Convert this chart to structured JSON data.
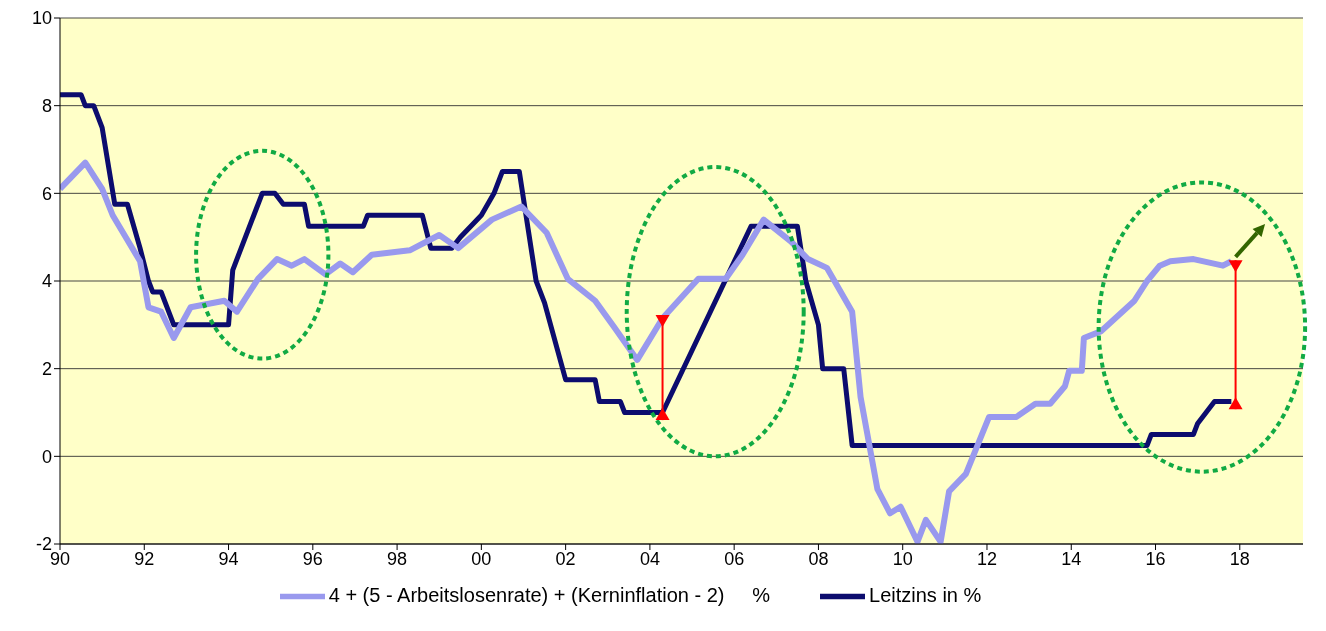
{
  "chart_data": {
    "type": "line",
    "xlim": [
      1990,
      2019.5
    ],
    "ylim": [
      -2,
      10
    ],
    "xticks": [
      {
        "value": 1990,
        "label": "90"
      },
      {
        "value": 1992,
        "label": "92"
      },
      {
        "value": 1994,
        "label": "94"
      },
      {
        "value": 1996,
        "label": "96"
      },
      {
        "value": 1998,
        "label": "98"
      },
      {
        "value": 2000,
        "label": "00"
      },
      {
        "value": 2002,
        "label": "02"
      },
      {
        "value": 2004,
        "label": "04"
      },
      {
        "value": 2006,
        "label": "06"
      },
      {
        "value": 2008,
        "label": "08"
      },
      {
        "value": 2010,
        "label": "10"
      },
      {
        "value": 2012,
        "label": "12"
      },
      {
        "value": 2014,
        "label": "14"
      },
      {
        "value": 2016,
        "label": "16"
      },
      {
        "value": 2018,
        "label": "18"
      }
    ],
    "yticks": [
      -2,
      0,
      2,
      4,
      6,
      8,
      10
    ],
    "grid": "y",
    "legend": "bottom",
    "marker": "none",
    "line_style": "solid",
    "series": [
      {
        "name": "Leitzins in %",
        "color": "#0c0c6e",
        "x": [
          1990,
          1990.5,
          1990.6,
          1990.8,
          1991.0,
          1991.3,
          1991.6,
          1991.9,
          1992.1,
          1992.2,
          1992.4,
          1992.7,
          1994.0,
          1994.1,
          1994.3,
          1994.6,
          1994.8,
          1995.1,
          1995.3,
          1995.8,
          1995.9,
          1997.2,
          1997.3,
          1998.6,
          1998.8,
          1999.3,
          1999.5,
          2000.0,
          2000.3,
          2000.5,
          2000.9,
          2001.3,
          2001.5,
          2002.0,
          2002.7,
          2002.8,
          2003.3,
          2003.4,
          2004.3,
          2006.4,
          2007.5,
          2007.7,
          2008.0,
          2008.1,
          2008.6,
          2008.8,
          2015.8,
          2015.9,
          2016.9,
          2017.0,
          2017.2,
          2017.4,
          2017.8
        ],
        "values": [
          8.25,
          8.25,
          8,
          8,
          7.5,
          5.75,
          5.75,
          4.75,
          4,
          3.75,
          3.75,
          3,
          3,
          4.25,
          4.75,
          5.5,
          6,
          6,
          5.75,
          5.75,
          5.25,
          5.25,
          5.5,
          5.5,
          4.75,
          4.75,
          5,
          5.5,
          6,
          6.5,
          6.5,
          4,
          3.5,
          1.75,
          1.75,
          1.25,
          1.25,
          1,
          1,
          5.25,
          5.25,
          4,
          3,
          2,
          2,
          0.25,
          0.25,
          0.5,
          0.5,
          0.75,
          1,
          1.25,
          1.25
        ]
      },
      {
        "name": "4 + (5 - Arbeitslosenrate) + (Kerninflation - 2)     %",
        "color": "#9999ee",
        "x": [
          1990.0,
          1990.6,
          1991.0,
          1991.25,
          1991.9,
          1992.1,
          1992.4,
          1992.7,
          1993.1,
          1993.9,
          1994.2,
          1994.7,
          1995.15,
          1995.5,
          1995.8,
          1996.3,
          1996.65,
          1996.95,
          1997.4,
          1998.3,
          1999.0,
          1999.45,
          2000.25,
          2000.95,
          2001.55,
          2002.05,
          2002.7,
          2003.15,
          2003.7,
          2004.3,
          2005.15,
          2005.8,
          2006.2,
          2006.7,
          2007.35,
          2007.75,
          2008.2,
          2008.8,
          2009.0,
          2009.4,
          2009.7,
          2009.95,
          2010.35,
          2010.55,
          2010.9,
          2011.1,
          2011.5,
          2012.05,
          2012.7,
          2013.15,
          2013.5,
          2013.85,
          2013.95,
          2014.25,
          2014.3,
          2014.7,
          2015.5,
          2015.8,
          2016.1,
          2016.35,
          2016.9,
          2017.6,
          2017.8
        ],
        "values": [
          6.1,
          6.7,
          6.1,
          5.5,
          4.45,
          3.4,
          3.3,
          2.7,
          3.4,
          3.55,
          3.3,
          4.05,
          4.5,
          4.35,
          4.5,
          4.15,
          4.4,
          4.2,
          4.6,
          4.7,
          5.05,
          4.75,
          5.4,
          5.7,
          5.1,
          4.05,
          3.55,
          2.95,
          2.2,
          3.15,
          4.05,
          4.05,
          4.6,
          5.4,
          4.9,
          4.5,
          4.3,
          3.3,
          1.35,
          -0.75,
          -1.3,
          -1.15,
          -1.95,
          -1.45,
          -1.95,
          -0.8,
          -0.4,
          0.9,
          0.9,
          1.2,
          1.2,
          1.6,
          1.95,
          1.95,
          2.7,
          2.85,
          3.55,
          4.0,
          4.35,
          4.45,
          4.5,
          4.35,
          4.45
        ]
      }
    ]
  }
}
